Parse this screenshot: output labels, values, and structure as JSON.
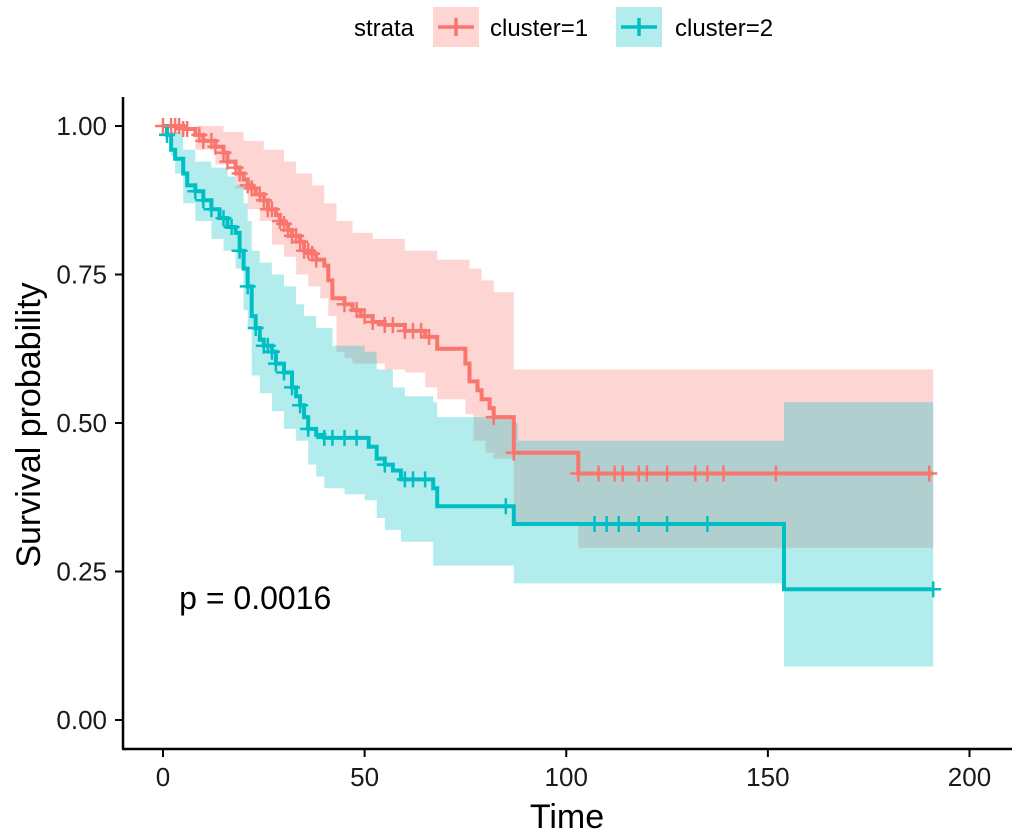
{
  "chart_data": {
    "type": "line",
    "subtype": "kaplan-meier survival curve",
    "xlabel": "Time",
    "ylabel": "Survival probability",
    "xlim": [
      0,
      200
    ],
    "ylim": [
      0,
      1
    ],
    "x_ticks": [
      0,
      50,
      100,
      150,
      200
    ],
    "y_ticks": [
      0.0,
      0.25,
      0.5,
      0.75,
      1.0
    ],
    "x_tick_labels": [
      "0",
      "50",
      "100",
      "150",
      "200"
    ],
    "y_tick_labels": [
      "0.00",
      "0.25",
      "0.50",
      "0.75",
      "1.00"
    ],
    "grid": false,
    "legend": {
      "position": "top",
      "title": "strata"
    },
    "annotation": {
      "text": "p = 0.0016",
      "x": 4,
      "y": 0.19
    },
    "series": [
      {
        "name": "cluster=1",
        "color": "#F8766D",
        "fill": "#F8766D",
        "steps": [
          [
            0,
            1.0
          ],
          [
            5,
            0.995
          ],
          [
            8,
            0.985
          ],
          [
            10,
            0.975
          ],
          [
            13,
            0.965
          ],
          [
            15,
            0.955
          ],
          [
            16,
            0.94
          ],
          [
            18,
            0.93
          ],
          [
            19,
            0.92
          ],
          [
            20,
            0.91
          ],
          [
            21,
            0.9
          ],
          [
            22,
            0.895
          ],
          [
            23,
            0.885
          ],
          [
            25,
            0.875
          ],
          [
            26,
            0.86
          ],
          [
            28,
            0.85
          ],
          [
            29,
            0.84
          ],
          [
            30,
            0.835
          ],
          [
            31,
            0.825
          ],
          [
            32,
            0.815
          ],
          [
            34,
            0.805
          ],
          [
            35,
            0.79
          ],
          [
            37,
            0.785
          ],
          [
            38,
            0.775
          ],
          [
            40,
            0.765
          ],
          [
            41,
            0.74
          ],
          [
            42,
            0.71
          ],
          [
            45,
            0.7
          ],
          [
            47,
            0.69
          ],
          [
            49,
            0.68
          ],
          [
            52,
            0.67
          ],
          [
            55,
            0.665
          ],
          [
            60,
            0.655
          ],
          [
            65,
            0.645
          ],
          [
            68,
            0.625
          ],
          [
            75,
            0.6
          ],
          [
            76,
            0.57
          ],
          [
            78,
            0.555
          ],
          [
            79,
            0.54
          ],
          [
            81,
            0.525
          ],
          [
            82,
            0.51
          ],
          [
            87,
            0.45
          ],
          [
            103,
            0.415
          ],
          [
            191,
            0.415
          ]
        ],
        "upper": [
          [
            0,
            1.0
          ],
          [
            8,
            1.0
          ],
          [
            15,
            0.99
          ],
          [
            20,
            0.975
          ],
          [
            25,
            0.96
          ],
          [
            30,
            0.94
          ],
          [
            33,
            0.92
          ],
          [
            37,
            0.9
          ],
          [
            40,
            0.87
          ],
          [
            43,
            0.84
          ],
          [
            47,
            0.82
          ],
          [
            52,
            0.81
          ],
          [
            60,
            0.79
          ],
          [
            68,
            0.775
          ],
          [
            76,
            0.76
          ],
          [
            79,
            0.74
          ],
          [
            82,
            0.72
          ],
          [
            87,
            0.59
          ],
          [
            103,
            0.59
          ],
          [
            191,
            0.59
          ]
        ],
        "lower": [
          [
            0,
            1.0
          ],
          [
            8,
            0.96
          ],
          [
            13,
            0.935
          ],
          [
            18,
            0.895
          ],
          [
            21,
            0.86
          ],
          [
            24,
            0.84
          ],
          [
            27,
            0.8
          ],
          [
            30,
            0.78
          ],
          [
            33,
            0.75
          ],
          [
            36,
            0.73
          ],
          [
            39,
            0.71
          ],
          [
            41,
            0.68
          ],
          [
            43,
            0.62
          ],
          [
            45,
            0.61
          ],
          [
            47,
            0.6
          ],
          [
            50,
            0.6
          ],
          [
            55,
            0.59
          ],
          [
            60,
            0.585
          ],
          [
            65,
            0.56
          ],
          [
            68,
            0.54
          ],
          [
            75,
            0.515
          ],
          [
            77,
            0.47
          ],
          [
            80,
            0.45
          ],
          [
            82,
            0.44
          ],
          [
            87,
            0.33
          ],
          [
            103,
            0.29
          ],
          [
            191,
            0.29
          ]
        ],
        "censor_x": [
          0,
          2,
          3,
          4,
          5,
          6,
          9,
          10,
          12,
          13,
          15,
          16,
          18,
          19,
          21,
          22,
          24,
          25,
          26,
          27,
          29,
          30,
          31,
          32,
          33,
          34,
          35,
          36,
          37,
          38,
          45,
          48,
          50,
          52,
          55,
          57,
          60,
          62,
          64,
          66,
          82,
          87,
          103,
          108,
          112,
          114,
          118,
          120,
          125,
          132,
          135,
          139,
          152,
          190
        ]
      },
      {
        "name": "cluster=2",
        "color": "#00BFC4",
        "fill": "#00BFC4",
        "steps": [
          [
            0,
            1.0
          ],
          [
            1,
            0.985
          ],
          [
            2,
            0.96
          ],
          [
            3,
            0.945
          ],
          [
            5,
            0.92
          ],
          [
            6,
            0.9
          ],
          [
            8,
            0.89
          ],
          [
            10,
            0.875
          ],
          [
            12,
            0.86
          ],
          [
            14,
            0.845
          ],
          [
            16,
            0.83
          ],
          [
            18,
            0.82
          ],
          [
            19,
            0.79
          ],
          [
            20,
            0.76
          ],
          [
            21,
            0.73
          ],
          [
            22,
            0.68
          ],
          [
            23,
            0.66
          ],
          [
            24,
            0.64
          ],
          [
            25,
            0.63
          ],
          [
            27,
            0.62
          ],
          [
            28,
            0.6
          ],
          [
            30,
            0.585
          ],
          [
            32,
            0.56
          ],
          [
            33,
            0.545
          ],
          [
            34,
            0.53
          ],
          [
            35,
            0.51
          ],
          [
            36,
            0.49
          ],
          [
            38,
            0.48
          ],
          [
            40,
            0.475
          ],
          [
            50,
            0.475
          ],
          [
            51,
            0.46
          ],
          [
            53,
            0.44
          ],
          [
            55,
            0.43
          ],
          [
            57,
            0.42
          ],
          [
            59,
            0.405
          ],
          [
            67,
            0.39
          ],
          [
            68,
            0.36
          ],
          [
            86,
            0.36
          ],
          [
            87,
            0.33
          ],
          [
            154,
            0.33
          ],
          [
            154,
            0.22
          ],
          [
            191,
            0.22
          ]
        ],
        "upper": [
          [
            0,
            1.0
          ],
          [
            2,
            0.99
          ],
          [
            5,
            0.96
          ],
          [
            8,
            0.94
          ],
          [
            12,
            0.93
          ],
          [
            16,
            0.915
          ],
          [
            18,
            0.9
          ],
          [
            20,
            0.87
          ],
          [
            21,
            0.84
          ],
          [
            22,
            0.79
          ],
          [
            24,
            0.77
          ],
          [
            27,
            0.75
          ],
          [
            30,
            0.73
          ],
          [
            33,
            0.7
          ],
          [
            35,
            0.68
          ],
          [
            38,
            0.66
          ],
          [
            42,
            0.63
          ],
          [
            50,
            0.62
          ],
          [
            53,
            0.59
          ],
          [
            57,
            0.56
          ],
          [
            60,
            0.545
          ],
          [
            67,
            0.535
          ],
          [
            68,
            0.51
          ],
          [
            87,
            0.5
          ],
          [
            88,
            0.47
          ],
          [
            103,
            0.47
          ],
          [
            154,
            0.535
          ],
          [
            191,
            0.535
          ]
        ],
        "lower": [
          [
            0,
            1.0
          ],
          [
            2,
            0.95
          ],
          [
            3,
            0.92
          ],
          [
            5,
            0.87
          ],
          [
            8,
            0.84
          ],
          [
            12,
            0.81
          ],
          [
            15,
            0.79
          ],
          [
            18,
            0.76
          ],
          [
            20,
            0.69
          ],
          [
            21,
            0.66
          ],
          [
            22,
            0.58
          ],
          [
            24,
            0.55
          ],
          [
            27,
            0.52
          ],
          [
            30,
            0.49
          ],
          [
            33,
            0.47
          ],
          [
            36,
            0.43
          ],
          [
            38,
            0.41
          ],
          [
            40,
            0.39
          ],
          [
            45,
            0.38
          ],
          [
            50,
            0.37
          ],
          [
            53,
            0.34
          ],
          [
            55,
            0.32
          ],
          [
            59,
            0.3
          ],
          [
            67,
            0.26
          ],
          [
            87,
            0.23
          ],
          [
            154,
            0.23
          ],
          [
            154,
            0.09
          ],
          [
            191,
            0.09
          ]
        ],
        "censor_x": [
          1,
          8,
          10,
          12,
          15,
          17,
          19,
          21,
          23,
          25,
          26,
          27,
          28,
          30,
          32,
          34,
          36,
          40,
          42,
          45,
          48,
          55,
          60,
          62,
          65,
          85,
          107,
          110,
          113,
          118,
          125,
          135,
          191
        ]
      }
    ]
  }
}
